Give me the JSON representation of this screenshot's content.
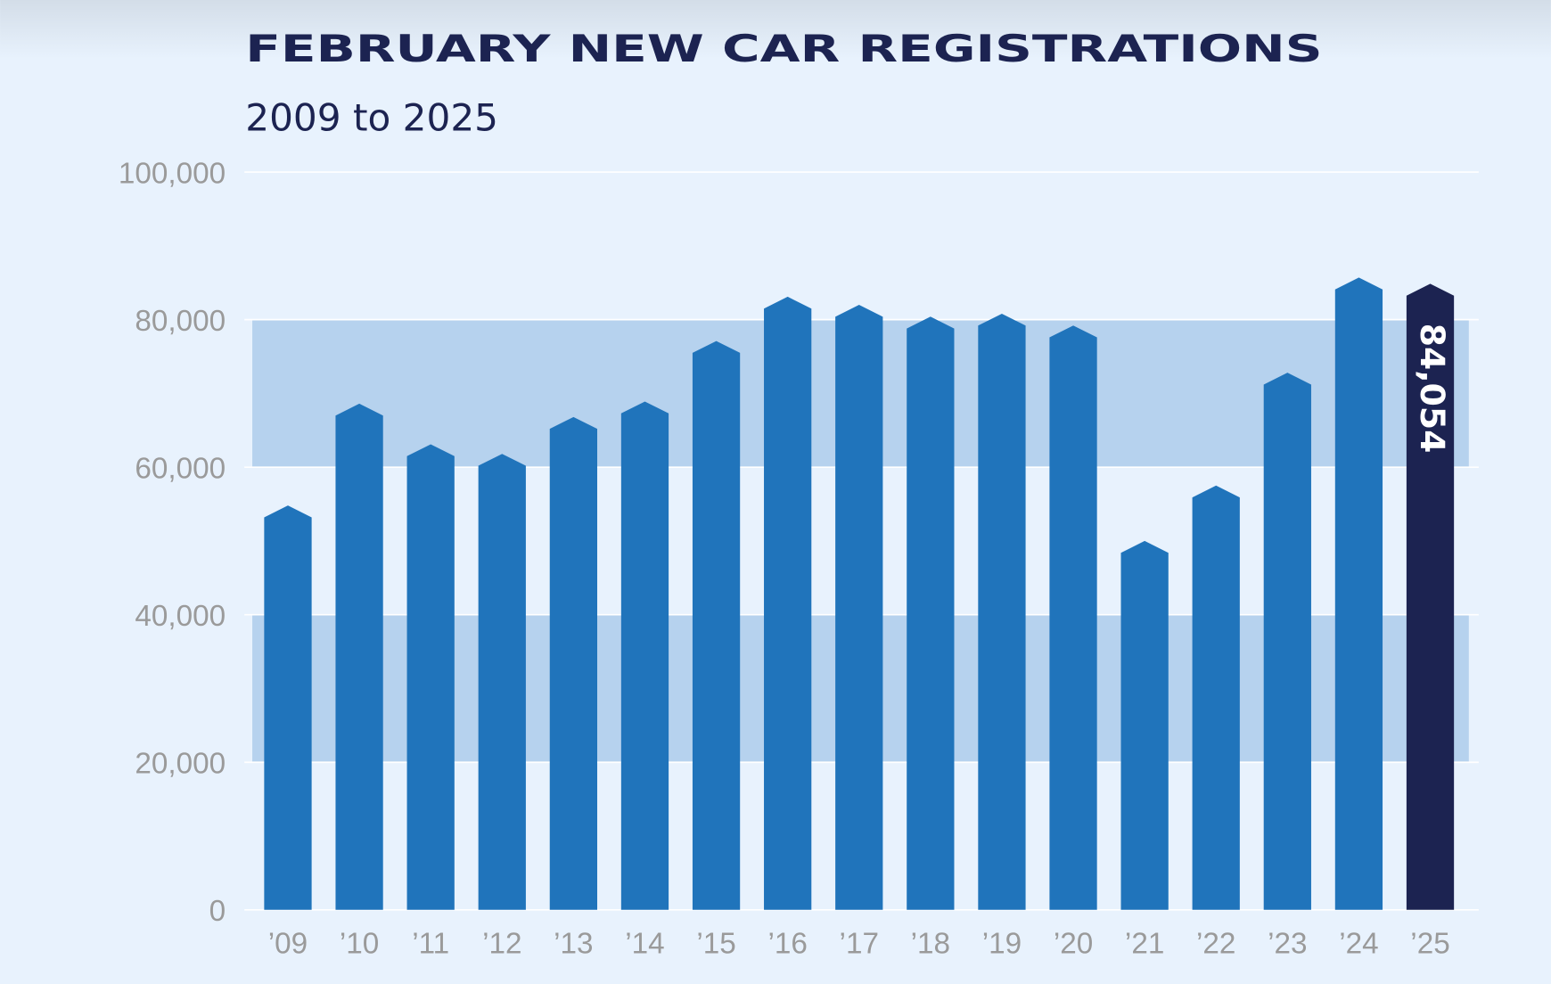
{
  "chart_data": {
    "type": "bar",
    "title": "FEBRUARY NEW CAR REGISTRATIONS",
    "subtitle": "2009 to 2025",
    "categories": [
      "’09",
      "’10",
      "’11",
      "’12",
      "’13",
      "’14",
      "’15",
      "’16",
      "’17",
      "’18",
      "’19",
      "’20",
      "’21",
      "’22",
      "’23",
      "’24",
      "’25"
    ],
    "values": [
      54000,
      67800,
      62300,
      61000,
      66000,
      68100,
      76300,
      82300,
      81200,
      79600,
      80000,
      78400,
      49200,
      56700,
      72000,
      84900,
      84054
    ],
    "value_labels": [
      null,
      null,
      null,
      null,
      null,
      null,
      null,
      null,
      null,
      null,
      null,
      null,
      null,
      null,
      null,
      null,
      "84,054"
    ],
    "colors": [
      "#2074bb",
      "#2074bb",
      "#2074bb",
      "#2074bb",
      "#2074bb",
      "#2074bb",
      "#2074bb",
      "#2074bb",
      "#2074bb",
      "#2074bb",
      "#2074bb",
      "#2074bb",
      "#2074bb",
      "#2074bb",
      "#2074bb",
      "#2074bb",
      "#1c2351"
    ],
    "ylim": [
      0,
      100000
    ],
    "yticks": [
      {
        "value": 0,
        "label": "0"
      },
      {
        "value": 20000,
        "label": "20,000"
      },
      {
        "value": 40000,
        "label": "40,000"
      },
      {
        "value": 60000,
        "label": "60,000"
      },
      {
        "value": 80000,
        "label": "80,000"
      },
      {
        "value": 100000,
        "label": "100,000"
      }
    ],
    "bands": [
      [
        20000,
        40000
      ],
      [
        60000,
        80000
      ]
    ],
    "band_color": "#b6d2ee",
    "grid": true
  }
}
